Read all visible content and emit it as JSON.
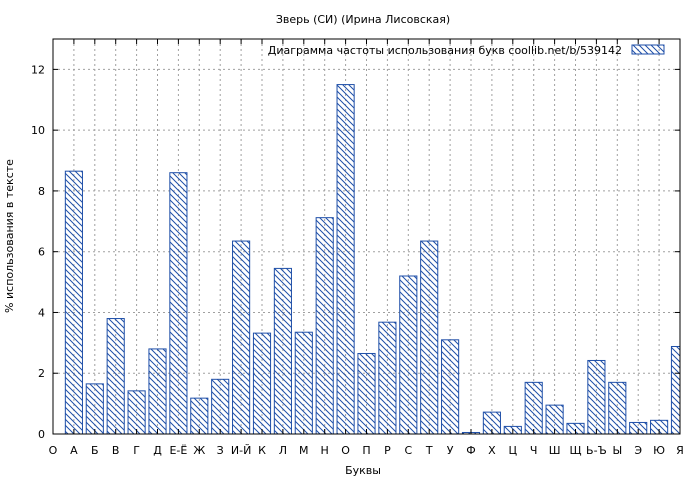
{
  "chart_data": {
    "type": "bar",
    "title": "Зверь (СИ) (Ирина Лисовская)",
    "xlabel": "Буквы",
    "ylabel": "% использования в тексте",
    "legend": {
      "label": "Диаграмма частоты использования букв  coollib.net/b/539142",
      "placement": "top-right"
    },
    "ylim": [
      0,
      13
    ],
    "yticks": [
      0,
      2,
      4,
      6,
      8,
      10,
      12
    ],
    "grid": true,
    "bar_color": "#1f4fa8",
    "categories": [
      "О",
      "А",
      "Б",
      "В",
      "Г",
      "Д",
      "Е-Ё",
      "Ж",
      "З",
      "И-Й",
      "К",
      "Л",
      "М",
      "Н",
      "О",
      "П",
      "Р",
      "С",
      "Т",
      "У",
      "Ф",
      "Х",
      "Ц",
      "Ч",
      "Ш",
      "Щ",
      "Ь-Ъ",
      "Ы",
      "Э",
      "Ю",
      "Я"
    ],
    "values": [
      null,
      8.65,
      1.65,
      3.8,
      1.42,
      2.8,
      8.6,
      1.18,
      1.8,
      6.35,
      3.32,
      5.45,
      3.35,
      7.12,
      11.5,
      2.65,
      3.68,
      5.2,
      6.35,
      3.1,
      0.05,
      0.72,
      0.25,
      1.7,
      0.95,
      0.35,
      2.42,
      1.7,
      0.38,
      0.45,
      2.88
    ]
  }
}
